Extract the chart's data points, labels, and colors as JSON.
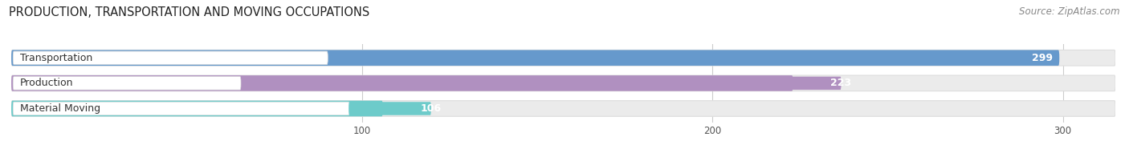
{
  "title": "PRODUCTION, TRANSPORTATION AND MOVING OCCUPATIONS",
  "source": "Source: ZipAtlas.com",
  "categories": [
    "Transportation",
    "Production",
    "Material Moving"
  ],
  "values": [
    299,
    223,
    106
  ],
  "bar_colors": [
    "#6699CC",
    "#B090C0",
    "#6DCBCA"
  ],
  "bar_bg_color": "#EBEBEB",
  "bar_border_color": "#DDDDDD",
  "xlim_max": 315,
  "xticks": [
    100,
    200,
    300
  ],
  "title_fontsize": 10.5,
  "source_fontsize": 8.5,
  "label_fontsize": 9,
  "value_fontsize": 9,
  "bar_height": 0.62,
  "background_color": "#FFFFFF",
  "grid_color": "#CCCCCC",
  "label_bg_color": "#FFFFFF"
}
